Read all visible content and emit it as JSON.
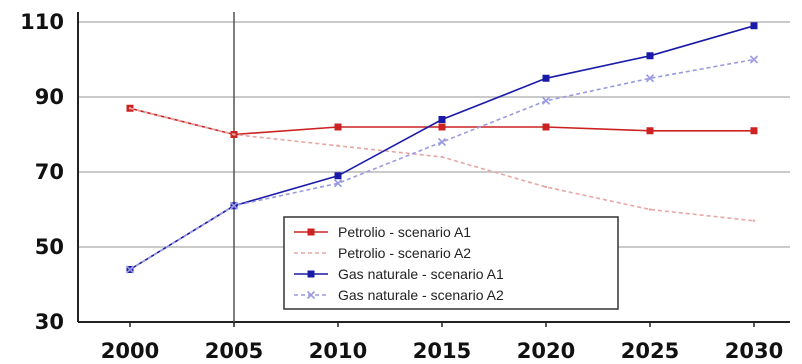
{
  "chart_data": {
    "type": "line",
    "title": "",
    "xlabel": "",
    "ylabel": "",
    "x": [
      2000,
      2005,
      2010,
      2015,
      2020,
      2025,
      2030
    ],
    "xlim": [
      2000,
      2030
    ],
    "ylim": [
      30,
      110
    ],
    "yticks": [
      30,
      50,
      70,
      90,
      110
    ],
    "grid": "horizontal",
    "legend_position": "bottom-center",
    "series": [
      {
        "name": "Petrolio - scenario A1",
        "color": "#cc2222",
        "style": "solid",
        "marker": "square",
        "values": [
          87,
          80,
          82,
          82,
          82,
          81,
          81
        ]
      },
      {
        "name": "Petrolio - scenario A2",
        "color": "#e8a6a6",
        "style": "dashed",
        "marker": "none",
        "values": [
          87,
          80,
          77,
          74,
          66,
          60,
          57
        ]
      },
      {
        "name": "Gas naturale - scenario A1",
        "color": "#1a1aa8",
        "style": "solid",
        "marker": "square",
        "values": [
          44,
          61,
          69,
          84,
          95,
          101,
          109
        ]
      },
      {
        "name": "Gas naturale - scenario A2",
        "color": "#9a9ae0",
        "style": "dashed",
        "marker": "x",
        "values": [
          44,
          61,
          67,
          78,
          89,
          95,
          100
        ]
      }
    ]
  }
}
